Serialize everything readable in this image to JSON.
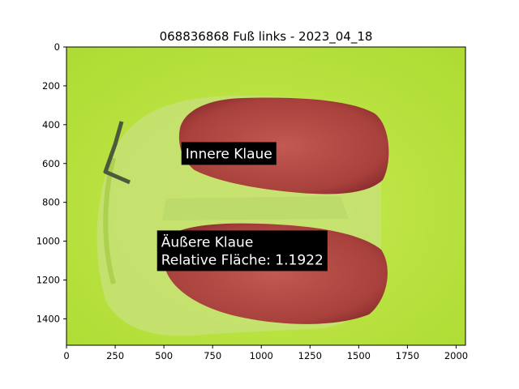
{
  "chart_data": {
    "type": "image",
    "title": "068836868 Fuß links - 2023_04_18",
    "xlabel": "",
    "ylabel": "",
    "xlim": [
      0,
      2048
    ],
    "ylim": [
      1536,
      0
    ],
    "x_ticks": [
      "0",
      "250",
      "500",
      "750",
      "1000",
      "1250",
      "1500",
      "1750",
      "2000"
    ],
    "y_ticks": [
      "0",
      "200",
      "400",
      "600",
      "800",
      "1000",
      "1200",
      "1400"
    ],
    "grid": false,
    "annotations": [
      {
        "lines": [
          "Innere Klaue"
        ],
        "x": 590,
        "y": 490
      },
      {
        "lines": [
          "Äußere Klaue",
          "Relative Fläche: 1.1922"
        ],
        "x": 465,
        "y": 945
      }
    ],
    "colors": {
      "background": "#b8e24a",
      "pad": "#c8e070",
      "claw": "#b04a44",
      "annotation_box": "#000000",
      "annotation_text": "#ffffff"
    }
  }
}
